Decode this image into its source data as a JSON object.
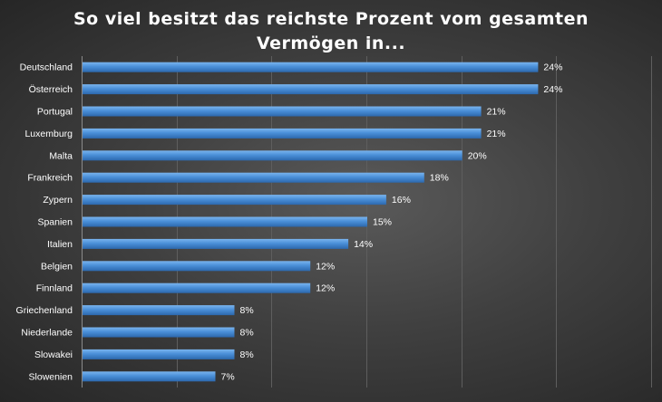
{
  "chart_data": {
    "type": "bar",
    "orientation": "horizontal",
    "title_lines": [
      "So viel besitzt  das reichste Prozent vom gesamten",
      "Vermögen  in..."
    ],
    "categories": [
      "Deutschland",
      "Österreich",
      "Portugal",
      "Luxemburg",
      "Malta",
      "Frankreich",
      "Zypern",
      "Spanien",
      "Italien",
      "Belgien",
      "Finnland",
      "Griechenland",
      "Niederlande",
      "Slowakei",
      "Slowenien"
    ],
    "values": [
      24,
      24,
      21,
      21,
      20,
      18,
      16,
      15,
      14,
      12,
      12,
      8,
      8,
      8,
      7
    ],
    "value_labels": [
      "24%",
      "24%",
      "21%",
      "21%",
      "20%",
      "18%",
      "16%",
      "15%",
      "14%",
      "12%",
      "12%",
      "8%",
      "8%",
      "8%",
      "7%"
    ],
    "xlim": [
      0,
      30
    ],
    "grid": true,
    "bar_color": "#4a8fd8",
    "background_color": "#3a3a3a"
  }
}
